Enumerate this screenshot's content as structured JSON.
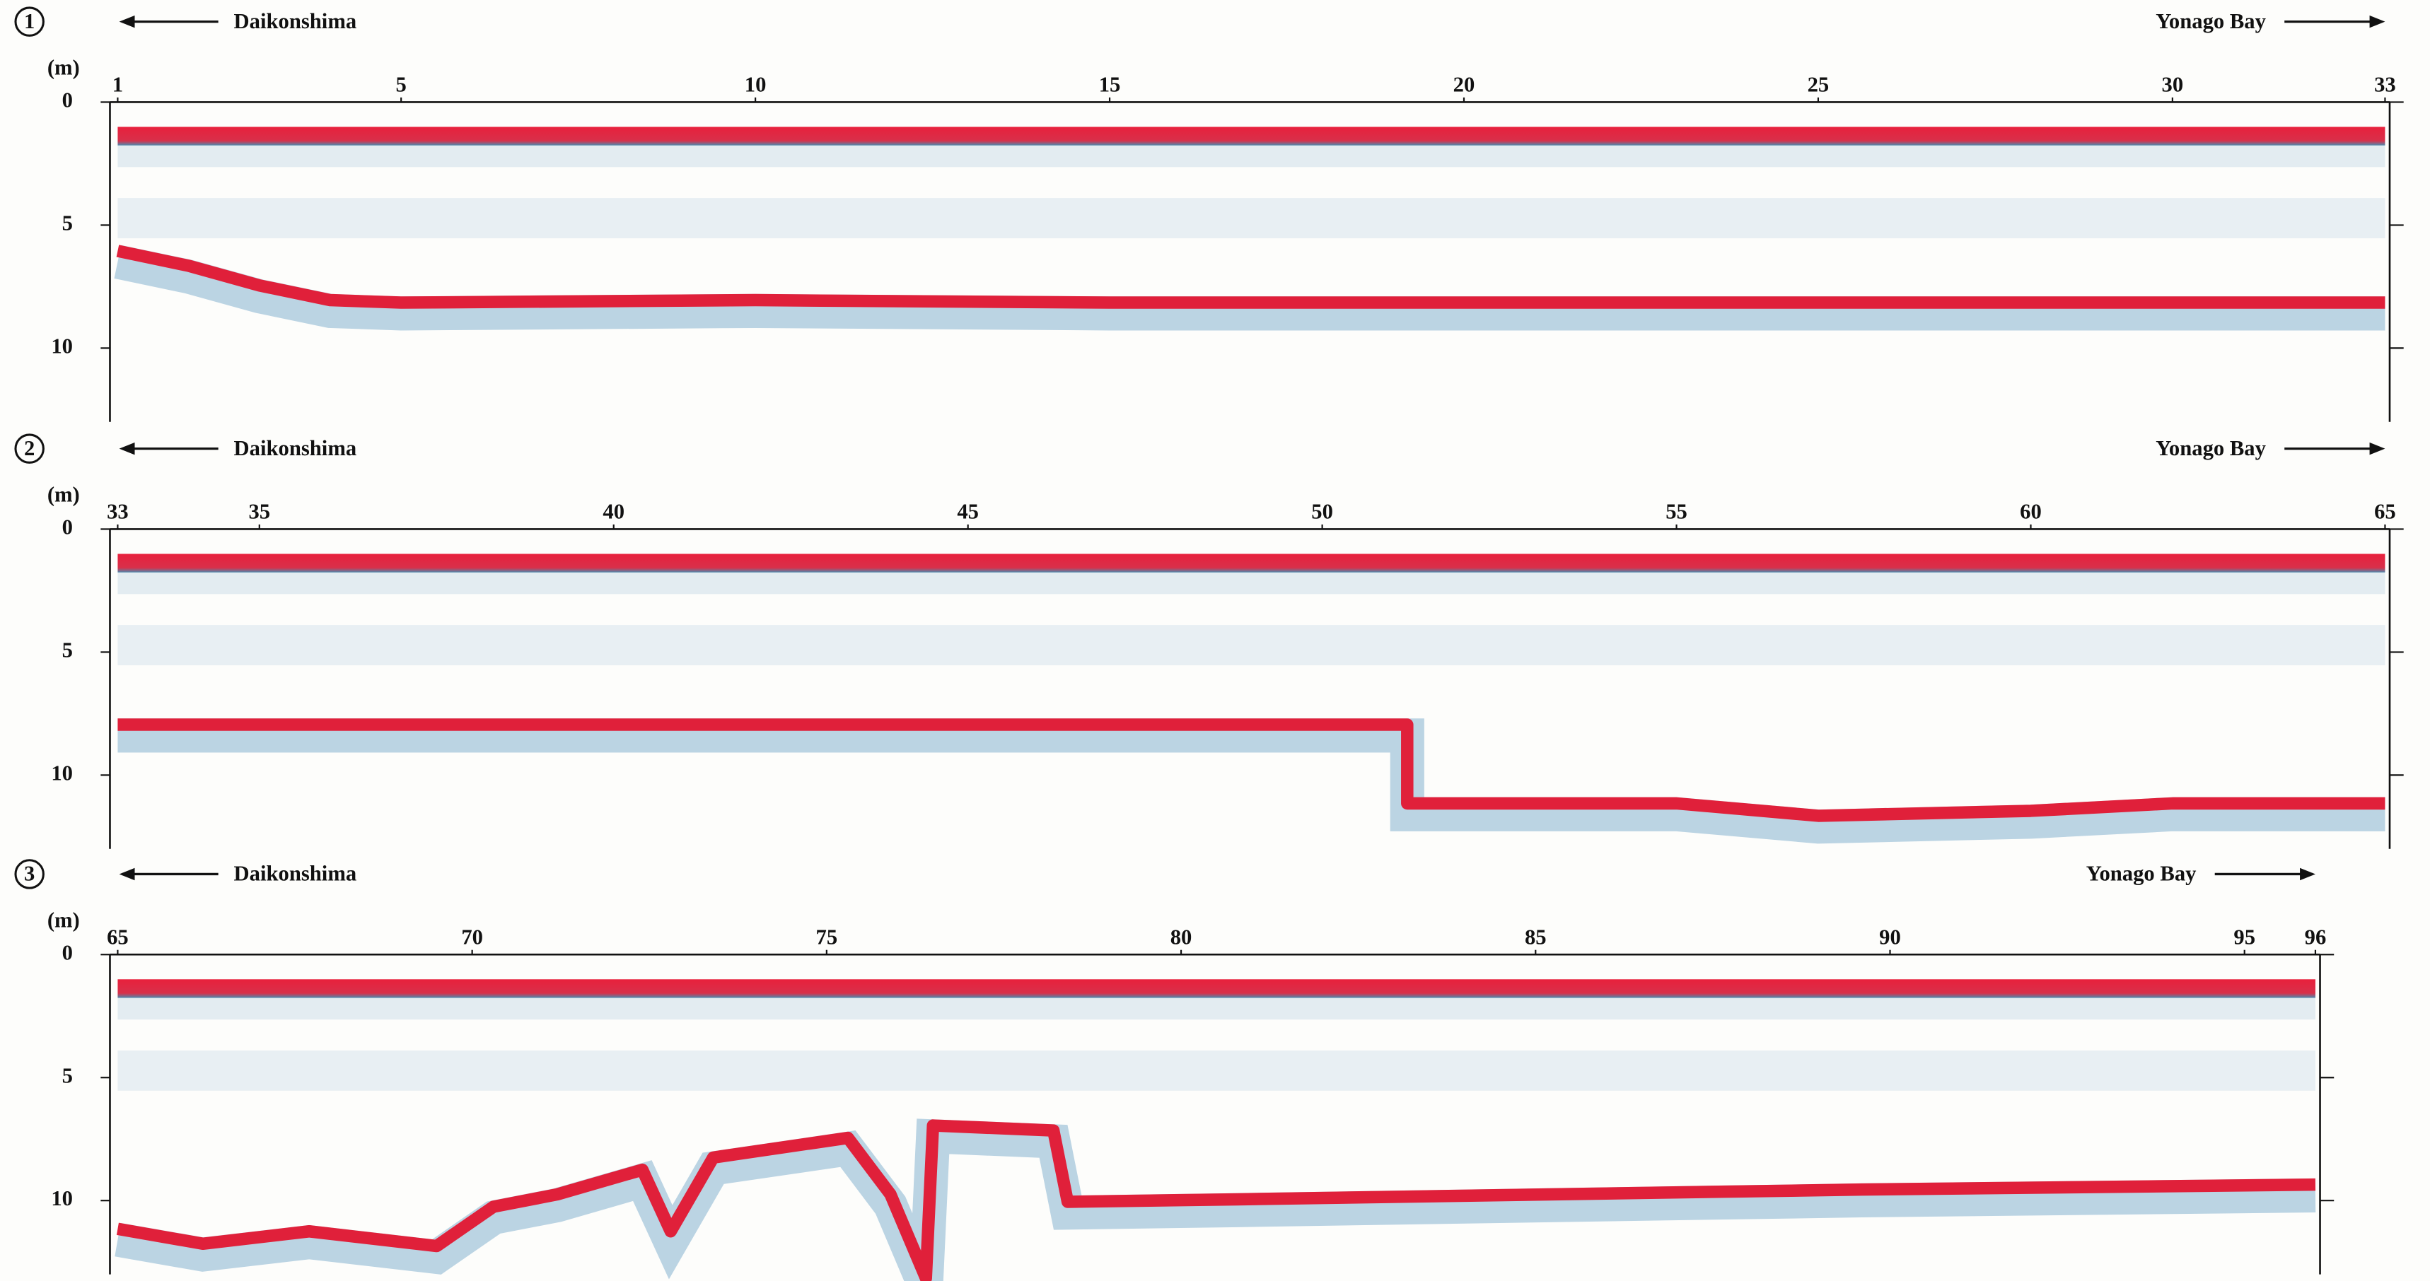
{
  "chart_data": [
    {
      "type": "line",
      "panel": "1",
      "left_label": "Daikonshima",
      "right_label": "Yonago Bay",
      "ylabel": "(m)",
      "x": [
        1,
        2,
        3,
        4,
        5,
        10,
        15,
        20,
        25,
        30,
        33
      ],
      "values": [
        5.8,
        6.4,
        7.2,
        7.8,
        7.9,
        7.8,
        7.9,
        7.9,
        7.9,
        7.9,
        7.9
      ],
      "xlim": [
        1,
        33
      ],
      "xticks": [
        1,
        5,
        10,
        15,
        20,
        25,
        30,
        33
      ],
      "ylim": [
        0,
        13
      ],
      "yticks": [
        0,
        5,
        10
      ],
      "invert_y": true,
      "color": "#e0203a"
    },
    {
      "type": "line",
      "panel": "2",
      "left_label": "Daikonshima",
      "right_label": "Yonago Bay",
      "ylabel": "(m)",
      "x": [
        33,
        40,
        45,
        51.2,
        51.2,
        55,
        57,
        60,
        62,
        65
      ],
      "values": [
        7.7,
        7.7,
        7.7,
        7.7,
        10.9,
        10.9,
        11.4,
        11.2,
        10.9,
        10.9
      ],
      "xlim": [
        33,
        65
      ],
      "xticks": [
        33,
        35,
        40,
        45,
        50,
        55,
        60,
        65
      ],
      "ylim": [
        0,
        13
      ],
      "yticks": [
        0,
        5,
        10
      ],
      "invert_y": true,
      "color": "#e0203a"
    },
    {
      "type": "line",
      "panel": "3",
      "left_label": "Daikonshima",
      "right_label": "Yonago Bay",
      "ylabel": "(m)",
      "x": [
        65,
        66.2,
        67.7,
        69.5,
        70.3,
        71.2,
        72.4,
        72.8,
        73.4,
        75.3,
        75.9,
        76.4,
        76.5,
        78.2,
        78.4,
        80.8,
        85.2,
        89.6,
        96
      ],
      "values": [
        10.9,
        11.5,
        11.0,
        11.6,
        10.0,
        9.5,
        8.5,
        11.0,
        8.0,
        7.2,
        9.5,
        12.9,
        6.7,
        6.9,
        9.8,
        9.7,
        9.5,
        9.3,
        9.1
      ],
      "xlim": [
        65,
        96
      ],
      "xticks": [
        65,
        70,
        75,
        80,
        85,
        90,
        95,
        96
      ],
      "ylim": [
        0,
        13
      ],
      "yticks": [
        0,
        5,
        10
      ],
      "invert_y": true,
      "color": "#e0203a"
    }
  ]
}
